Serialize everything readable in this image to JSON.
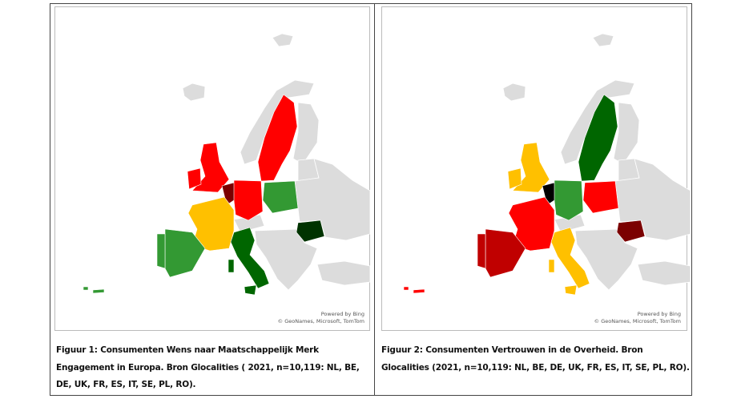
{
  "figures": [
    {
      "attribution": [
        "Powered by Bing",
        "© GeoNames, Microsoft, TomTom"
      ],
      "caption": [
        "Figuur 1: Consumenten Wens naar Maatschappelijk Merk",
        "Engagement in Europa. Bron Glocalities ( 2021, n=10,119: NL, BE,",
        "DE, UK, FR, ES, IT, SE, PL, RO)."
      ]
    },
    {
      "attribution": [
        "Powered by Bing",
        "© GeoNames, Microsoft, TomTom"
      ],
      "caption": [
        "Figuur 2: Consumenten Vertrouwen in de Overheid. Bron",
        "Glocalities (2021, n=10,119: NL, BE, DE, UK, FR, ES, IT, SE, PL, RO)."
      ]
    }
  ]
}
